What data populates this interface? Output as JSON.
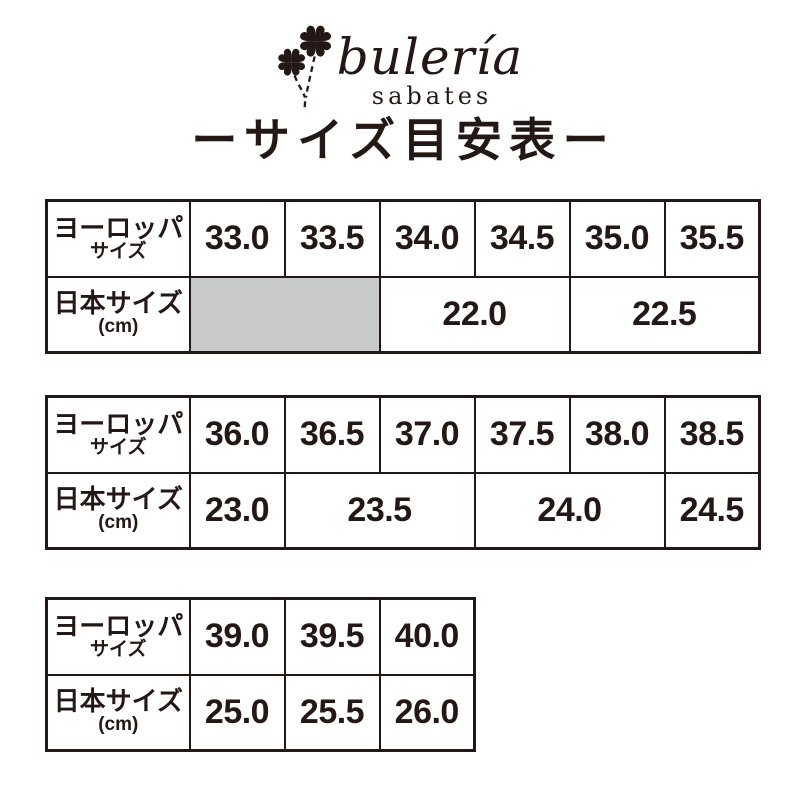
{
  "background": "#ffffff",
  "colors": {
    "ink": "#231815",
    "shaded_cell": "#c9caca",
    "table_background": "#ffffff"
  },
  "logo": {
    "brand": "bulería",
    "subtitle": "sabates",
    "icon": "clover-flowers-icon"
  },
  "title": "ーサイズ目安表ー",
  "row_headers": {
    "eu": {
      "line1": "ヨーロッパ",
      "line2": "サイズ"
    },
    "jp": {
      "line1": "日本サイズ",
      "line2": "(cm)"
    }
  },
  "chart_data": [
    {
      "type": "table",
      "columns": 6,
      "eu_sizes": [
        {
          "label": "33.0",
          "span": 1
        },
        {
          "label": "33.5",
          "span": 1
        },
        {
          "label": "34.0",
          "span": 1
        },
        {
          "label": "34.5",
          "span": 1
        },
        {
          "label": "35.0",
          "span": 1
        },
        {
          "label": "35.5",
          "span": 1
        }
      ],
      "jp_sizes": [
        {
          "label": "",
          "span": 2,
          "shaded": true
        },
        {
          "label": "22.0",
          "span": 2
        },
        {
          "label": "22.5",
          "span": 2
        }
      ]
    },
    {
      "type": "table",
      "columns": 6,
      "eu_sizes": [
        {
          "label": "36.0",
          "span": 1
        },
        {
          "label": "36.5",
          "span": 1
        },
        {
          "label": "37.0",
          "span": 1
        },
        {
          "label": "37.5",
          "span": 1
        },
        {
          "label": "38.0",
          "span": 1
        },
        {
          "label": "38.5",
          "span": 1
        }
      ],
      "jp_sizes": [
        {
          "label": "23.0",
          "span": 1
        },
        {
          "label": "23.5",
          "span": 2
        },
        {
          "label": "24.0",
          "span": 2
        },
        {
          "label": "24.5",
          "span": 1
        }
      ]
    },
    {
      "type": "table",
      "columns": 3,
      "eu_sizes": [
        {
          "label": "39.0",
          "span": 1
        },
        {
          "label": "39.5",
          "span": 1
        },
        {
          "label": "40.0",
          "span": 1
        }
      ],
      "jp_sizes": [
        {
          "label": "25.0",
          "span": 1
        },
        {
          "label": "25.5",
          "span": 1
        },
        {
          "label": "26.0",
          "span": 1
        }
      ]
    }
  ]
}
